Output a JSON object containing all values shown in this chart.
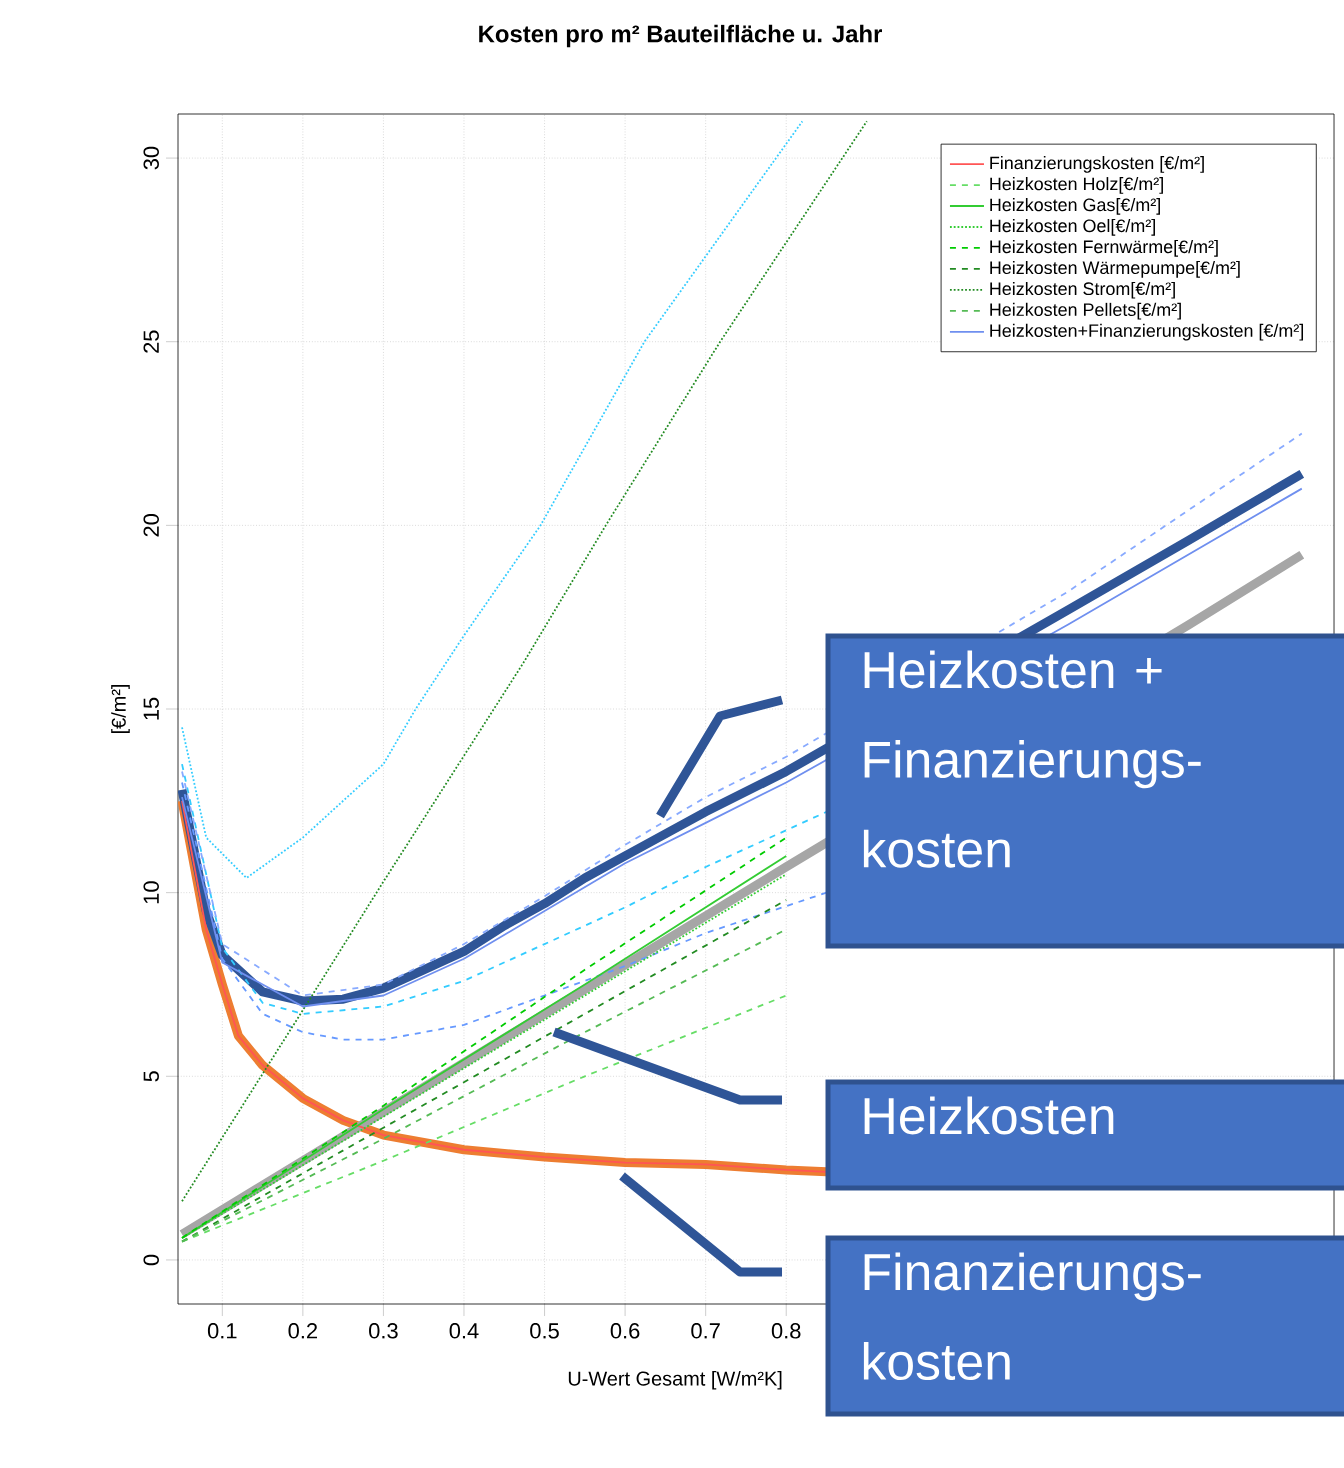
{
  "chart_data": {
    "type": "line",
    "title": "Kosten pro  m²  Bauteilfläche  u. Jahr",
    "xlabel": "U-Wert Gesamt [W/m²K]",
    "ylabel": "[€/m²]",
    "xlim": [
      0.045,
      1.48
    ],
    "ylim": [
      -1.2,
      31.2
    ],
    "xticks": [
      0.1,
      0.2,
      0.3,
      0.4,
      0.5,
      0.6,
      0.7,
      0.8
    ],
    "yticks": [
      0,
      5,
      10,
      15,
      20,
      25,
      30
    ],
    "grid": true,
    "legend": "top right",
    "series": [
      {
        "color": "#ed7d31",
        "line_style": "solid",
        "x": [
          0.05,
          0.08,
          0.1,
          0.12,
          0.15,
          0.2,
          0.25,
          0.3,
          0.4,
          0.5,
          0.6,
          0.7,
          0.8,
          0.85
        ],
        "values": [
          12.5,
          9,
          7.5,
          6.1,
          5.3,
          4.4,
          3.8,
          3.4,
          3.0,
          2.8,
          2.65,
          2.6,
          2.45,
          2.4
        ]
      },
      {
        "color": "#a6a6a6",
        "line_style": "solid",
        "x": [
          0.05,
          0.8,
          1.3,
          1.44
        ],
        "values": [
          0.7,
          10.7,
          17.3,
          19.2
        ]
      },
      {
        "color": "#2f5597",
        "line_style": "solid",
        "x": [
          0.05,
          0.08,
          0.1,
          0.15,
          0.2,
          0.25,
          0.3,
          0.35,
          0.4,
          0.45,
          0.5,
          0.55,
          0.6,
          0.7,
          0.8,
          1.15,
          1.3,
          1.44
        ],
        "values": [
          12.8,
          9.5,
          8.3,
          7.3,
          7.05,
          7.1,
          7.4,
          7.9,
          8.4,
          9.1,
          9.7,
          10.4,
          11.0,
          12.2,
          13.3,
          17.7,
          19.6,
          21.4
        ]
      },
      {
        "color": "#33ccff",
        "line_style": "dashed",
        "x": [
          0.05,
          0.1,
          0.15,
          0.2,
          0.3,
          0.4,
          0.5,
          0.6,
          0.7,
          0.85
        ],
        "values": [
          13.5,
          8.5,
          7.0,
          6.7,
          6.9,
          7.6,
          8.6,
          9.6,
          10.7,
          12.2
        ]
      },
      {
        "color": "#6699ff",
        "line_style": "dashed",
        "x": [
          0.05,
          0.1,
          0.15,
          0.2,
          0.25,
          0.3,
          0.4,
          0.5,
          0.6,
          0.7,
          0.85
        ],
        "values": [
          13,
          8.2,
          6.7,
          6.2,
          6.0,
          6.0,
          6.4,
          7.2,
          8.0,
          8.9,
          10.0
        ]
      },
      {
        "color": "#88aaff",
        "line_style": "dashed",
        "x": [
          0.05,
          0.1,
          0.2,
          0.3,
          0.4,
          0.5,
          0.6,
          0.7,
          0.8,
          1.15,
          1.44
        ],
        "values": [
          13.3,
          8.6,
          7.2,
          7.5,
          8.6,
          9.9,
          11.3,
          12.6,
          13.7,
          18.2,
          22.5
        ]
      },
      {
        "color": "#33ccff",
        "line_style": "dotted",
        "x": [
          0.05,
          0.08,
          0.13,
          0.2,
          0.3,
          0.34,
          0.4,
          0.495,
          0.624,
          0.82
        ],
        "values": [
          14.5,
          11.5,
          10.4,
          11.5,
          13.5,
          15,
          17,
          20,
          25,
          31
        ]
      },
      {
        "name": "Finanzierungskosten [€/m²]",
        "color": "#ff5555",
        "line_style": "solid",
        "x": [
          0.05,
          0.08,
          0.1,
          0.12,
          0.15,
          0.2,
          0.25,
          0.3,
          0.4,
          0.5,
          0.6,
          0.7,
          0.8,
          0.85
        ],
        "values": [
          12.5,
          9,
          7.5,
          6.1,
          5.3,
          4.4,
          3.8,
          3.4,
          3.0,
          2.8,
          2.65,
          2.6,
          2.45,
          2.4
        ]
      },
      {
        "name": "Heizkosten Holz[€/m²]",
        "color": "#66dd66",
        "line_style": "dashed",
        "x": [
          0.05,
          0.3,
          0.55,
          0.8
        ],
        "values": [
          0.5,
          2.7,
          5.0,
          7.2
        ]
      },
      {
        "name": "Heizkosten Gas[€/m²]",
        "color": "#33cc33",
        "line_style": "solid",
        "x": [
          0.05,
          0.3,
          0.55,
          0.8
        ],
        "values": [
          0.6,
          4.1,
          7.5,
          11.0
        ]
      },
      {
        "name": "Heizkosten Oel[€/m²]",
        "color": "#33cc33",
        "line_style": "dotted",
        "x": [
          0.05,
          0.3,
          0.55,
          0.8
        ],
        "values": [
          0.6,
          3.9,
          7.2,
          10.5
        ]
      },
      {
        "name": "Heizkosten Fernwärme[€/m²]",
        "color": "#00cc00",
        "line_style": "dashed",
        "x": [
          0.05,
          0.3,
          0.55,
          0.8
        ],
        "values": [
          0.6,
          4.2,
          7.9,
          11.5
        ]
      },
      {
        "name": "Heizkosten Wärmepumpe[€/m²]",
        "color": "#228b22",
        "line_style": "dashed",
        "x": [
          0.05,
          0.3,
          0.55,
          0.8
        ],
        "values": [
          0.5,
          3.6,
          6.7,
          9.8
        ]
      },
      {
        "name": "Heizkosten Strom[€/m²]",
        "color": "#228b22",
        "line_style": "dotted",
        "x": [
          0.05,
          0.2,
          0.3,
          0.475,
          0.576,
          0.718,
          0.9
        ],
        "values": [
          1.6,
          6.8,
          10.3,
          16.3,
          20,
          25,
          31
        ]
      },
      {
        "name": "Heizkosten Pellets[€/m²]",
        "color": "#55bb55",
        "line_style": "dashed",
        "x": [
          0.05,
          0.3,
          0.55,
          0.8
        ],
        "values": [
          0.5,
          3.3,
          6.2,
          9.0
        ]
      },
      {
        "name": "Heizkosten+Finanzierungskosten [€/m²]",
        "color": "#6f8fef",
        "line_style": "solid",
        "x": [
          0.05,
          0.1,
          0.2,
          0.3,
          0.4,
          0.5,
          0.6,
          0.7,
          0.8,
          1.15,
          1.44
        ],
        "values": [
          12.6,
          8.1,
          6.9,
          7.2,
          8.2,
          9.5,
          10.8,
          11.9,
          13.0,
          17.3,
          21.0
        ]
      }
    ],
    "annotations": [
      "Heizkosten + Finanzierungs- kosten",
      "Heizkosten",
      "Finanzierungs- kosten"
    ]
  }
}
